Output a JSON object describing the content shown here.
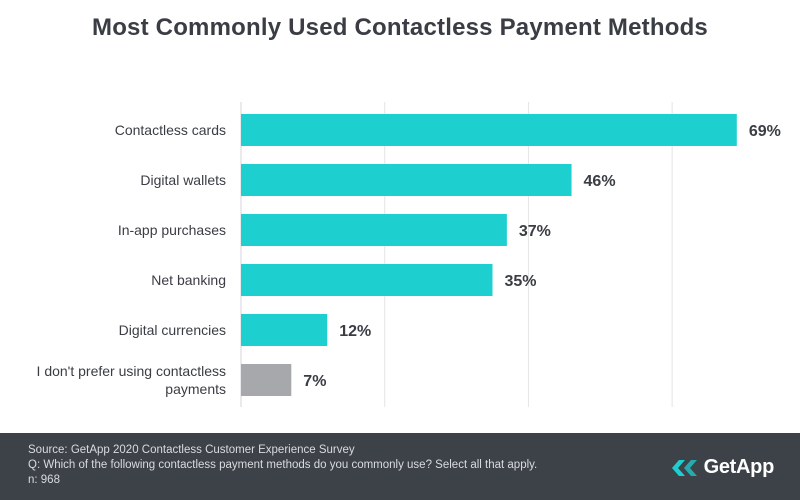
{
  "chart_data": {
    "type": "bar",
    "orientation": "horizontal",
    "title": "Most Commonly Used Contactless Payment Methods",
    "categories": [
      [
        "Contactless cards"
      ],
      [
        "Digital wallets"
      ],
      [
        "In-app purchases"
      ],
      [
        "Net banking"
      ],
      [
        "Digital currencies"
      ],
      [
        "I don't prefer using contactless",
        "payments"
      ]
    ],
    "values": [
      69,
      46,
      37,
      35,
      12,
      7
    ],
    "value_labels": [
      "69%",
      "46%",
      "37%",
      "35%",
      "12%",
      "7%"
    ],
    "colors": [
      "#1ecfd0",
      "#1ecfd0",
      "#1ecfd0",
      "#1ecfd0",
      "#1ecfd0",
      "#a6a8ab"
    ],
    "xlim": [
      0,
      70
    ],
    "grid": true,
    "xlabel": "",
    "ylabel": ""
  },
  "footer": {
    "source": "Source: GetApp 2020 Contactless Customer Experience Survey",
    "question": "Q: Which of the following contactless payment methods do you commonly use? Select all that apply.",
    "sample": "n: 968",
    "brand": "GetApp"
  },
  "colors": {
    "footer_bg": "#3d4148",
    "bar_primary": "#1ecfd0",
    "bar_secondary": "#a6a8ab"
  }
}
